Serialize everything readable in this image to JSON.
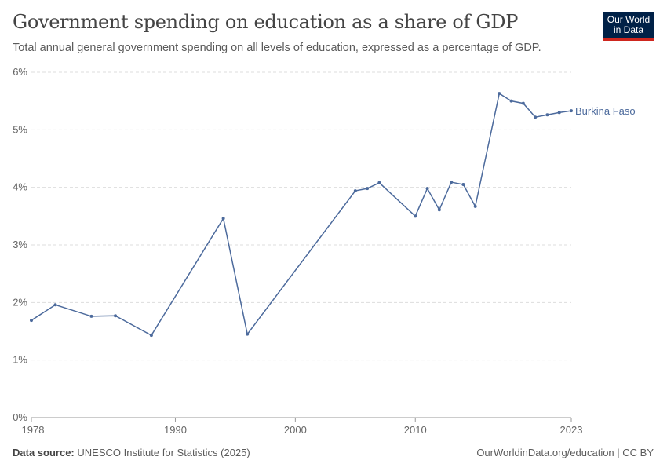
{
  "header": {
    "title": "Government spending on education as a share of GDP",
    "subtitle": "Total annual general government spending on all levels of education, expressed as a percentage of GDP.",
    "logo_text": "Our World in Data"
  },
  "footer": {
    "source_label": "Data source:",
    "source": "UNESCO Institute for Statistics (2025)",
    "link": "OurWorldinData.org/education | CC BY"
  },
  "colors": {
    "series": "#4c6a9c",
    "grid": "#dddddd",
    "text": "#666666"
  },
  "chart_data": {
    "type": "line",
    "title": "Government spending on education as a share of GDP",
    "xlim": [
      1978,
      2023
    ],
    "ylim": [
      0,
      6
    ],
    "grid": true,
    "legend": "right-end label",
    "xticks": [
      "1978",
      "1990",
      "2000",
      "2010",
      "2023"
    ],
    "yticks": [
      "0%",
      "1%",
      "2%",
      "3%",
      "4%",
      "5%",
      "6%"
    ],
    "series": [
      {
        "name": "Burkina Faso",
        "x": [
          1978,
          1980,
          1983,
          1985,
          1988,
          1994,
          1996,
          2005,
          2006,
          2007,
          2010,
          2011,
          2012,
          2013,
          2014,
          2015,
          2017,
          2018,
          2019,
          2020,
          2021,
          2022,
          2023
        ],
        "values": [
          1.69,
          1.96,
          1.76,
          1.77,
          1.43,
          3.46,
          1.45,
          3.94,
          3.98,
          4.08,
          3.5,
          3.98,
          3.61,
          4.09,
          4.05,
          3.67,
          5.63,
          5.5,
          5.46,
          5.22,
          5.26,
          5.3,
          5.33
        ]
      }
    ]
  }
}
